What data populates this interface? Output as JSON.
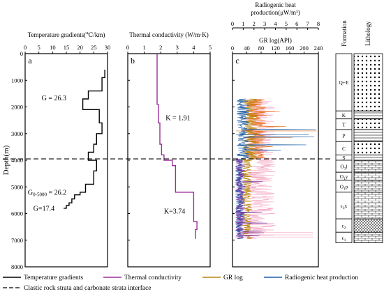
{
  "colors": {
    "temperature": "#000000",
    "conductivity": "#9b2f9b",
    "gr": "#b8860b",
    "heat": "#1f5fa8",
    "heat_upper": "#e8701a",
    "heat_lower": "#6a2fa0",
    "gr_pink": "#f5a3c0"
  },
  "chart_data": [
    {
      "type": "line",
      "panel_label": "a",
      "title": "Temperature gradients(℃/km)",
      "xlim": [
        0,
        30
      ],
      "x_ticks": [
        "0",
        "5",
        "10",
        "15",
        "20",
        "25",
        "30"
      ],
      "ylim": [
        0,
        8000
      ],
      "y_ticks": [
        "0",
        "1000",
        "2000",
        "3000",
        "4000",
        "5000",
        "6000",
        "7000",
        "8000"
      ],
      "ylabel": "Depth(m)",
      "series": [
        {
          "name": "Temperature gradients",
          "step_profile": [
            [
              29,
              600
            ],
            [
              29,
              900
            ],
            [
              28,
              900
            ],
            [
              28,
              1400
            ],
            [
              23,
              1400
            ],
            [
              23,
              1700
            ],
            [
              21,
              1700
            ],
            [
              21,
              2100
            ],
            [
              27,
              2100
            ],
            [
              27,
              2600
            ],
            [
              28,
              2600
            ],
            [
              28,
              3000
            ],
            [
              26,
              3000
            ],
            [
              26,
              3400
            ],
            [
              25,
              3400
            ],
            [
              25,
              3700
            ],
            [
              23,
              3700
            ],
            [
              23,
              4000
            ],
            [
              26,
              4000
            ],
            [
              26,
              4400
            ],
            [
              25,
              4400
            ],
            [
              25,
              4900
            ],
            [
              22,
              4900
            ],
            [
              22,
              5200
            ],
            [
              20,
              5200
            ],
            [
              20,
              5300
            ],
            [
              18,
              5300
            ],
            [
              18,
              5450
            ],
            [
              17,
              5450
            ],
            [
              17,
              5600
            ],
            [
              16,
              5600
            ],
            [
              16,
              5700
            ],
            [
              15,
              5700
            ],
            [
              15,
              5800
            ],
            [
              14,
              5800
            ]
          ]
        }
      ],
      "annotations": [
        {
          "text": "G = 26.3",
          "x": 6,
          "y": 1750
        },
        {
          "text": "G",
          "sub": "0-5000",
          "suffix": " = 26.2",
          "x": 1,
          "y": 5300
        },
        {
          "text": "G=17.4",
          "x": 3,
          "y": 5900
        }
      ]
    },
    {
      "type": "line",
      "panel_label": "b",
      "title": "Thermal conductivity (W/m·K)",
      "xlim": [
        0,
        5
      ],
      "x_ticks": [
        "0",
        "1",
        "2",
        "3",
        "4",
        "5"
      ],
      "ylim": [
        0,
        8000
      ],
      "series": [
        {
          "name": "Thermal conductivity",
          "step_profile": [
            [
              1.78,
              0
            ],
            [
              1.78,
              1900
            ],
            [
              1.85,
              1900
            ],
            [
              1.85,
              2600
            ],
            [
              1.95,
              2600
            ],
            [
              1.95,
              3400
            ],
            [
              2.05,
              3400
            ],
            [
              2.05,
              3800
            ],
            [
              2.2,
              3800
            ],
            [
              2.2,
              4000
            ],
            [
              2.7,
              4000
            ],
            [
              2.7,
              4200
            ],
            [
              2.9,
              4200
            ],
            [
              2.9,
              5200
            ],
            [
              4.0,
              5200
            ],
            [
              4.0,
              6300
            ],
            [
              4.2,
              6300
            ],
            [
              4.2,
              6600
            ],
            [
              4.1,
              6600
            ],
            [
              4.1,
              6950
            ]
          ]
        }
      ],
      "annotations": [
        {
          "text": "K = 1.91",
          "x": 2.3,
          "y": 2500
        },
        {
          "text": "K=3.74",
          "x": 2.2,
          "y": 6000
        }
      ]
    },
    {
      "type": "line",
      "panel_label": "c",
      "title": "Radiogenic heat production(μW/m³)",
      "title_line1": "Radiogenic heat",
      "title_line2": "production(μW/m³)",
      "secondary_title": "GR log(API)",
      "top_axis_lim": [
        0,
        8
      ],
      "top_ticks": [
        "0",
        "1",
        "2",
        "3",
        "4",
        "5",
        "6",
        "7",
        "8"
      ],
      "bottom_axis_lim": [
        0,
        240
      ],
      "bottom_ticks": [
        "0",
        "40",
        "80",
        "120",
        "160",
        "200",
        "240"
      ],
      "ylim": [
        0,
        8000
      ],
      "series": [
        {
          "name": "GR log",
          "units": "API",
          "depth_range": [
            1700,
            6950
          ],
          "typical_range": [
            20,
            110
          ],
          "max": 235
        },
        {
          "name": "Radiogenic heat production",
          "units": "μW/m³",
          "depth_range": [
            1700,
            6950
          ],
          "typical_range": [
            0.3,
            2.5
          ],
          "max": 7.1
        }
      ]
    }
  ],
  "interface": {
    "depth": 3950
  },
  "lithology": {
    "formation_header": "Formation",
    "lithology_header": "Lithology",
    "units": [
      {
        "label": "Q+E",
        "top": 0,
        "bottom": 2150
      },
      {
        "label": "K",
        "top": 2150,
        "bottom": 2450
      },
      {
        "label": "T",
        "top": 2450,
        "bottom": 2850
      },
      {
        "label": "P",
        "top": 2850,
        "bottom": 3300
      },
      {
        "label": "C",
        "top": 3300,
        "bottom": 3800
      },
      {
        "label": "S",
        "top": 3800,
        "bottom": 4000
      },
      {
        "label": "O",
        "sub": "3",
        "suffix": "l",
        "top": 4000,
        "bottom": 4450
      },
      {
        "label": "O",
        "sub": "1",
        "suffix": "y",
        "top": 4450,
        "bottom": 4750
      },
      {
        "label": "O",
        "sub": "1",
        "suffix": "p",
        "top": 4750,
        "bottom": 5200
      },
      {
        "label": "ϵ",
        "sub": "3",
        "suffix": "x",
        "top": 5200,
        "bottom": 6200
      },
      {
        "label": "ϵ",
        "sub": "2",
        "suffix": "",
        "top": 6200,
        "bottom": 6700
      },
      {
        "label": "ϵ",
        "sub": "1",
        "suffix": "",
        "top": 6700,
        "bottom": 7100
      }
    ]
  },
  "legend": {
    "items": [
      {
        "label": "Temperature gradients",
        "color": "#000000"
      },
      {
        "label": "Thermal conductivity",
        "color": "#9b2f9b"
      },
      {
        "label": "GR log",
        "color": "#b8860b"
      },
      {
        "label": "Radiogenic heat production",
        "color": "#1f5fa8"
      }
    ],
    "dashed_label": "Clastic rock strata and carbonate strata interface"
  }
}
